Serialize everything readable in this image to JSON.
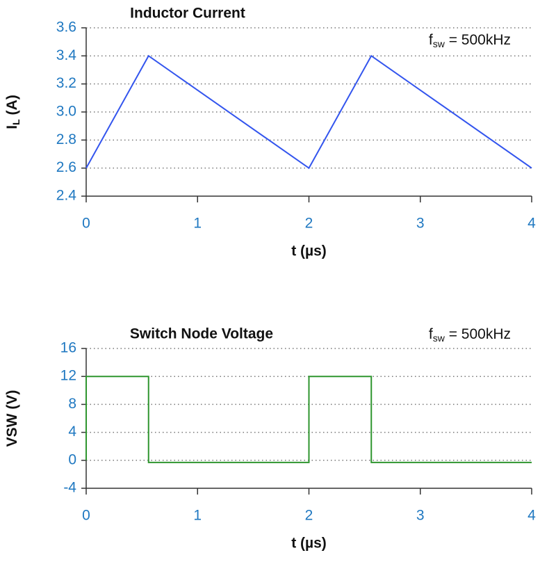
{
  "chart_data": [
    {
      "type": "line",
      "title": "Inductor Current",
      "ylabel": {
        "main": "I",
        "sub": "L",
        "rest": " (A)"
      },
      "xlabel": "t (µs)",
      "annotation": {
        "main": "f",
        "sub": "sw",
        "rest": " = 500kHz"
      },
      "x": [
        0,
        0.56,
        2,
        2.56,
        4
      ],
      "values": [
        2.6,
        3.4,
        2.6,
        3.4,
        2.6
      ],
      "color": "#3355ee",
      "xlim": [
        0,
        4
      ],
      "xticks": [
        0,
        1,
        2,
        3,
        4
      ],
      "ylim": [
        2.4,
        3.6
      ],
      "yticks": [
        2.4,
        2.6,
        2.8,
        {
          "value": 3,
          "label": "3.0"
        },
        3.2,
        3.4,
        3.6
      ],
      "grid": true
    },
    {
      "type": "line",
      "title": "Switch Node Voltage",
      "ylabel": {
        "main": "VSW (V)"
      },
      "xlabel": "t (µs)",
      "annotation": {
        "main": "f",
        "sub": "sw",
        "rest": " = 500kHz"
      },
      "x": [
        0,
        0,
        0.56,
        0.56,
        2,
        2,
        2.56,
        2.56,
        4
      ],
      "values": [
        0,
        12,
        12,
        -0.3,
        -0.3,
        12,
        12,
        -0.3,
        -0.3
      ],
      "color": "#2e952e",
      "xlim": [
        0,
        4
      ],
      "xticks": [
        0,
        1,
        2,
        3,
        4
      ],
      "ylim": [
        -4,
        16
      ],
      "yticks": [
        -4,
        0,
        4,
        8,
        12,
        16
      ],
      "grid": true
    }
  ]
}
